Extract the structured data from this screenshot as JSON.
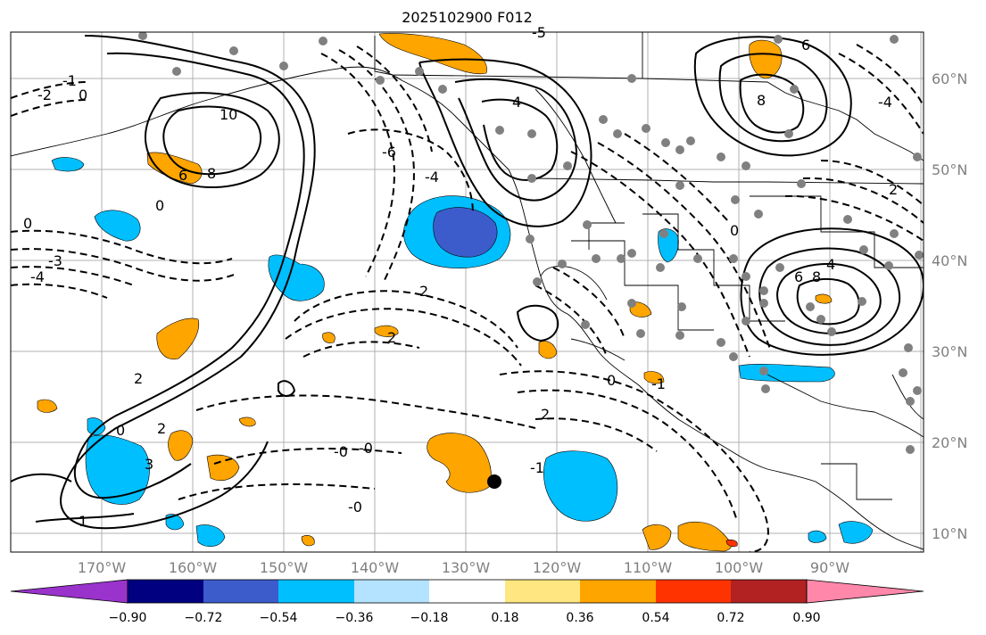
{
  "title": "2025102900 F012",
  "axes": {
    "lon_ticks": [
      "170°W",
      "160°W",
      "150°W",
      "140°W",
      "130°W",
      "120°W",
      "110°W",
      "100°W",
      "90°W"
    ],
    "lat_ticks": [
      "10°N",
      "20°N",
      "30°N",
      "40°N",
      "50°N",
      "60°N"
    ],
    "tick_label_color": "#808080"
  },
  "colorbar": {
    "ticks": [
      "−0.90",
      "−0.72",
      "−0.54",
      "−0.36",
      "−0.18",
      "0.18",
      "0.36",
      "0.54",
      "0.72",
      "0.90"
    ],
    "colors": [
      "#9933cc",
      "#000080",
      "#3c5ccc",
      "#00bfff",
      "#b3e3ff",
      "#ffffff",
      "#ffe680",
      "#ffa500",
      "#ff3300",
      "#b22222",
      "#ff88aa"
    ]
  },
  "contour_labels": [
    {
      "text": "-5"
    },
    {
      "text": "-1"
    },
    {
      "text": "-2"
    },
    {
      "text": "0"
    },
    {
      "text": "10"
    },
    {
      "text": "4"
    },
    {
      "text": "8"
    },
    {
      "text": "6"
    },
    {
      "text": "-4"
    },
    {
      "text": "-3"
    },
    {
      "text": "-6"
    },
    {
      "text": "2"
    },
    {
      "text": "1"
    },
    {
      "text": "-0"
    },
    {
      "text": "3"
    }
  ],
  "colors": {
    "orange": "#ffa500",
    "light_blue": "#00bfff",
    "medium_blue": "#3c5ccc",
    "red_orange": "#ff3300",
    "station_gray": "#808080",
    "grid_gray": "#b0b0b0"
  }
}
